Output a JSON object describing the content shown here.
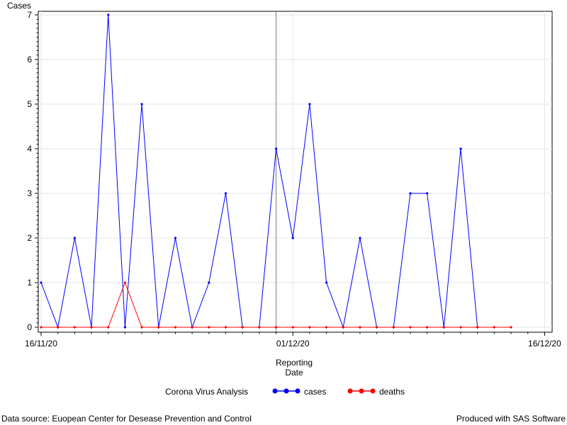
{
  "chart_data": {
    "type": "line",
    "ylabel": "Cases",
    "xlabel_line1": "Reporting",
    "xlabel_line2": "Date",
    "ylim": [
      0,
      7
    ],
    "y_ticks": [
      "0",
      "1",
      "2",
      "3",
      "4",
      "5",
      "6",
      "7"
    ],
    "x_tick_labels": [
      "16/11/20",
      "01/12/20",
      "16/12/20"
    ],
    "x_tick_days": [
      0,
      15,
      30
    ],
    "x_days": [
      0,
      1,
      2,
      3,
      4,
      5,
      6,
      7,
      8,
      9,
      10,
      11,
      12,
      13,
      14,
      15,
      16,
      17,
      18,
      19,
      20,
      21,
      22,
      23,
      24,
      25,
      26,
      27,
      28
    ],
    "reference_line_day": 14,
    "series": [
      {
        "name": "cases",
        "color": "#0000ff",
        "values": [
          1,
          0,
          2,
          0,
          7,
          0,
          5,
          0,
          2,
          0,
          1,
          3,
          0,
          0,
          4,
          2,
          5,
          1,
          0,
          2,
          0,
          0,
          3,
          3,
          0,
          4,
          0,
          null,
          null
        ]
      },
      {
        "name": "deaths",
        "color": "#ff0000",
        "values": [
          0,
          0,
          0,
          0,
          0,
          1,
          0,
          0,
          0,
          0,
          0,
          0,
          0,
          0,
          0,
          0,
          0,
          0,
          0,
          0,
          0,
          0,
          0,
          0,
          0,
          0,
          0,
          0,
          0
        ]
      }
    ],
    "legend_title": "Corona Virus Analysis",
    "legend_position": "bottom",
    "grid": true
  },
  "footer": {
    "left": "Data source: Euopean Center for Desease Prevention and Control",
    "right": "Produced with SAS Software"
  }
}
